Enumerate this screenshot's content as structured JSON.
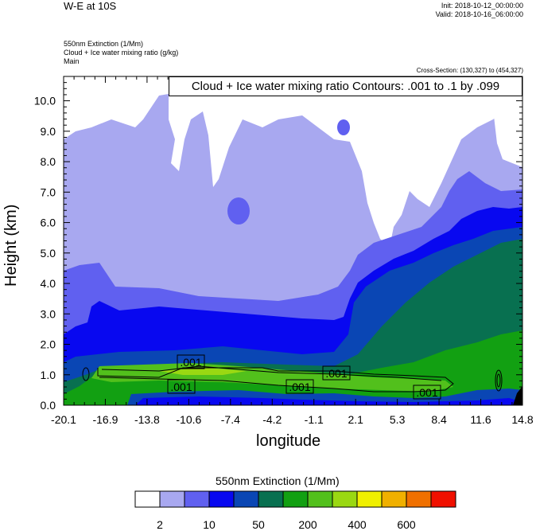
{
  "header": {
    "title": "W-E at 10S",
    "init": "Init: 2018-10-12_00:00:00",
    "valid": "Valid: 2018-10-16_06:00:00",
    "subtitle_1": "550nm Extinction   (1/Mm)",
    "subtitle_2": "Cloud + Ice water mixing ratio   (g/kg)",
    "subtitle_3": "Main",
    "cross_section": "Cross-Section: (130,327) to (454,327)",
    "contour_info": "Cloud + Ice water mixing ratio Contours: .001 to .1 by .099"
  },
  "chart_data": {
    "type": "heatmap",
    "xlabel": "longitude",
    "ylabel": "Height (km)",
    "xlim": [
      -20.1,
      14.8
    ],
    "ylim": [
      0.0,
      10.8
    ],
    "x_ticks": [
      "-20.1",
      "-16.9",
      "-13.8",
      "-10.6",
      "-7.4",
      "-4.2",
      "-1.1",
      "2.1",
      "5.3",
      "8.4",
      "11.6",
      "14.8"
    ],
    "y_ticks": [
      "0.0",
      "1.0",
      "2.0",
      "3.0",
      "4.0",
      "5.0",
      "6.0",
      "7.0",
      "8.0",
      "9.0",
      "10.0"
    ],
    "colorbar": {
      "title": "550nm Extinction  (1/Mm)",
      "colors": [
        "#ffffff",
        "#a8a8f0",
        "#6060f0",
        "#0808f0",
        "#0a46b4",
        "#087050",
        "#12a012",
        "#52c01c",
        "#9ad812",
        "#f0f000",
        "#f0b000",
        "#f07000",
        "#f01000"
      ],
      "labels": [
        "2",
        "10",
        "50",
        "200",
        "400",
        "600"
      ]
    },
    "contour_labels": [
      ".001",
      ".001",
      ".001",
      ".001",
      ".001"
    ]
  }
}
